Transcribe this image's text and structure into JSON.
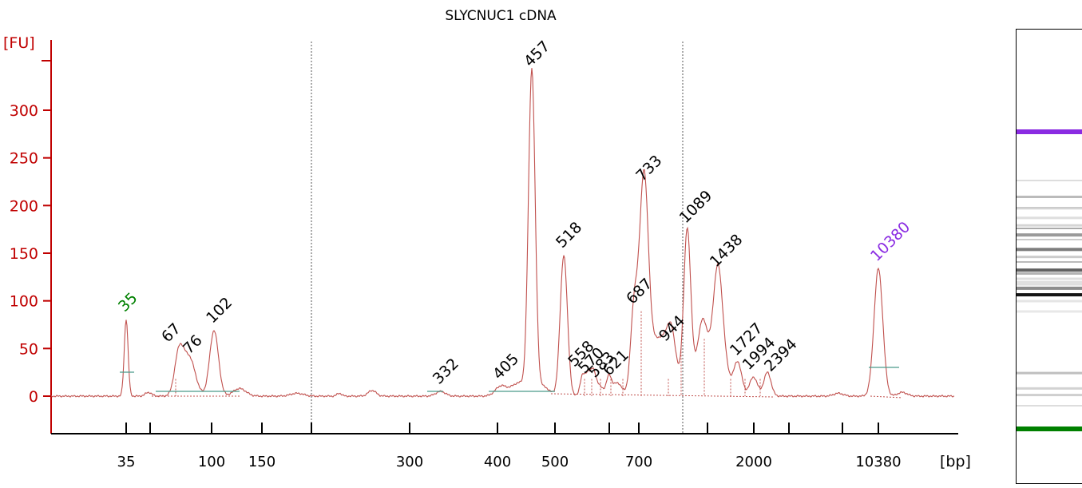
{
  "chart_data": {
    "type": "line",
    "title": "SLYCNUC1 cDNA",
    "ylabel": "[FU]",
    "xlabel": "[bp]",
    "ylim": [
      -40,
      370
    ],
    "yticks": [
      0,
      50,
      100,
      150,
      200,
      250,
      300
    ],
    "xtick_labels": [
      "35",
      "100",
      "150",
      "300",
      "400",
      "500",
      "700",
      "2000",
      "10380"
    ],
    "colors": {
      "axis": "#c00000",
      "trace": "#c0504d",
      "marker_low": "#008000",
      "marker_high": "#8a2be2"
    },
    "peaks": [
      {
        "label": "35",
        "x": 35,
        "fu": 81,
        "kind": "marker_low"
      },
      {
        "label": "67",
        "x": 67,
        "fu": 44
      },
      {
        "label": "76",
        "x": 76,
        "fu": 40
      },
      {
        "label": "102",
        "x": 102,
        "fu": 69
      },
      {
        "label": "332",
        "x": 332,
        "fu": 5
      },
      {
        "label": "405",
        "x": 405,
        "fu": 10
      },
      {
        "label": "457",
        "x": 457,
        "fu": 338
      },
      {
        "label": "518",
        "x": 518,
        "fu": 148
      },
      {
        "label": "558",
        "x": 558,
        "fu": 20
      },
      {
        "label": "570",
        "x": 570,
        "fu": 18
      },
      {
        "label": "583",
        "x": 583,
        "fu": 17
      },
      {
        "label": "621",
        "x": 621,
        "fu": 19
      },
      {
        "label": "687",
        "x": 687,
        "fu": 89
      },
      {
        "label": "733",
        "x": 733,
        "fu": 218
      },
      {
        "label": "944",
        "x": 944,
        "fu": 50
      },
      {
        "label": "1089",
        "x": 1089,
        "fu": 174
      },
      {
        "label": "1438",
        "x": 1438,
        "fu": 128
      },
      {
        "label": "1727",
        "x": 1727,
        "fu": 35
      },
      {
        "label": "1994",
        "x": 1994,
        "fu": 20
      },
      {
        "label": "2394",
        "x": 2394,
        "fu": 25
      },
      {
        "label": "10380",
        "x": 10380,
        "fu": 134,
        "kind": "marker_high"
      }
    ]
  }
}
